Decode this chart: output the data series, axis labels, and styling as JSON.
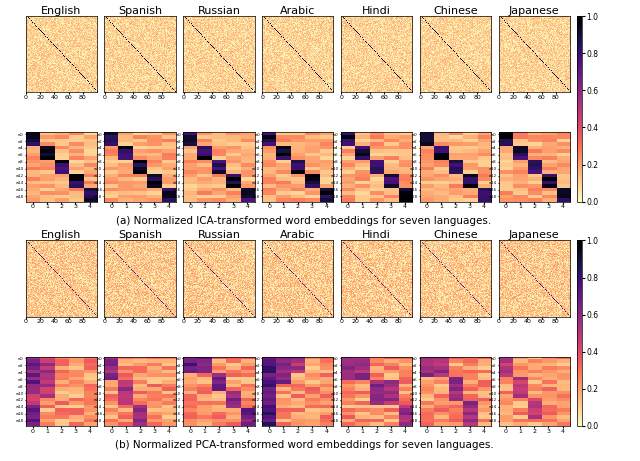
{
  "languages": [
    "English",
    "Spanish",
    "Russian",
    "Arabic",
    "Hindi",
    "Chinese",
    "Japanese"
  ],
  "colormap": "magma_r",
  "big_matrix_size": 100,
  "small_rows": 20,
  "small_cols": 5,
  "colorbar_ticks": [
    0.0,
    0.2,
    0.4,
    0.6,
    0.8,
    1.0
  ],
  "caption_a": "(a) Normalized ICA-transformed word embeddings for seven languages.",
  "caption_b": "(b) Normalized PCA-transformed word embeddings for seven languages.",
  "title_fontsize": 8,
  "caption_fontsize": 7.5,
  "tick_fontsize": 4.5,
  "ytick_fontsize": 2.8,
  "colorbar_fontsize": 5.5,
  "fig_width": 6.4,
  "fig_height": 4.61,
  "background_color": "#ffffff"
}
